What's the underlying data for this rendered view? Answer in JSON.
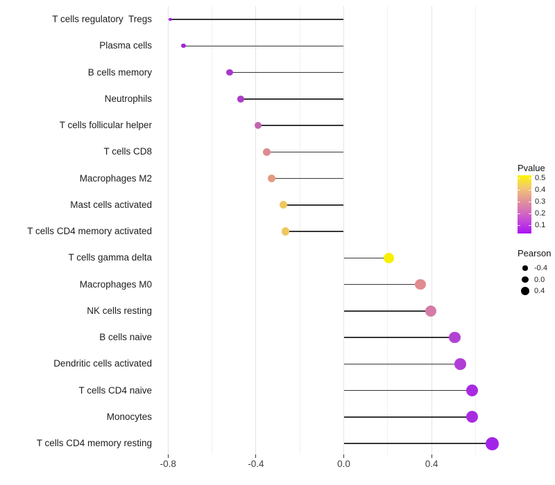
{
  "chart_data": {
    "type": "scatter",
    "style": "horizontal-lollipop",
    "title": "",
    "xlabel": "",
    "ylabel": "",
    "xlim": [
      -0.865,
      0.755
    ],
    "baseline": 0.0,
    "grid": "vertical-only",
    "x_ticks": [
      -0.8,
      -0.4,
      0.0,
      0.4
    ],
    "x_tick_labels": [
      "-0.8",
      "-0.4",
      "0.0",
      "0.4"
    ],
    "x_minor_ticks": [
      -0.6,
      -0.2,
      0.2,
      0.6
    ],
    "items": [
      {
        "label": "T cells regulatory  Tregs",
        "pearson": -0.79,
        "color": "#9B23DC",
        "radius": 2.2
      },
      {
        "label": "Plasma cells",
        "pearson": -0.73,
        "color": "#9D28D5",
        "radius": 3.2
      },
      {
        "label": "B cells memory",
        "pearson": -0.52,
        "color": "#A737CD",
        "radius": 4.6
      },
      {
        "label": "Neutrophils",
        "pearson": -0.47,
        "color": "#AB3EC6",
        "radius": 4.8
      },
      {
        "label": "T cells follicular helper",
        "pearson": -0.39,
        "color": "#C364AE",
        "radius": 5.2
      },
      {
        "label": "T cells CD8",
        "pearson": -0.35,
        "color": "#DE8A92",
        "radius": 5.4
      },
      {
        "label": "Macrophages M2",
        "pearson": -0.33,
        "color": "#E59A80",
        "radius": 5.5
      },
      {
        "label": "Mast cells activated",
        "pearson": -0.275,
        "color": "#EFC75F",
        "radius": 5.7
      },
      {
        "label": "T cells CD4 memory activated",
        "pearson": -0.265,
        "color": "#EFC75F",
        "radius": 5.7
      },
      {
        "label": "T cells gamma delta",
        "pearson": 0.205,
        "color": "#F8F000",
        "radius": 7.6
      },
      {
        "label": "Macrophages M0",
        "pearson": 0.35,
        "color": "#E18B90",
        "radius": 7.9
      },
      {
        "label": "NK cells resting",
        "pearson": 0.395,
        "color": "#D57BA5",
        "radius": 8.0
      },
      {
        "label": "B cells naive",
        "pearson": 0.505,
        "color": "#B243D2",
        "radius": 8.3
      },
      {
        "label": "Dendritic cells activated",
        "pearson": 0.53,
        "color": "#B13DD8",
        "radius": 8.4
      },
      {
        "label": "T cells CD4 naive",
        "pearson": 0.585,
        "color": "#A82BE2",
        "radius": 8.6
      },
      {
        "label": "Monocytes",
        "pearson": 0.585,
        "color": "#A82BE2",
        "radius": 8.6
      },
      {
        "label": "T cells CD4 memory resting",
        "pearson": 0.675,
        "color": "#A324E9",
        "radius": 9.5
      }
    ],
    "legend_pvalue": {
      "title": "Pvalue",
      "tick_labels": [
        "0.5",
        "0.4",
        "0.3",
        "0.2",
        "0.1"
      ],
      "gradient_top_to_bottom": [
        "#FCF500",
        "#F3CB70",
        "#E59B92",
        "#D673B6",
        "#C244DC",
        "#AC12F2"
      ]
    },
    "legend_pearson": {
      "title": "Pearson",
      "entries": [
        {
          "label": "-0.4",
          "radius": 3.6
        },
        {
          "label": "0.0",
          "radius": 4.8
        },
        {
          "label": "0.4",
          "radius": 6.2
        }
      ]
    }
  }
}
